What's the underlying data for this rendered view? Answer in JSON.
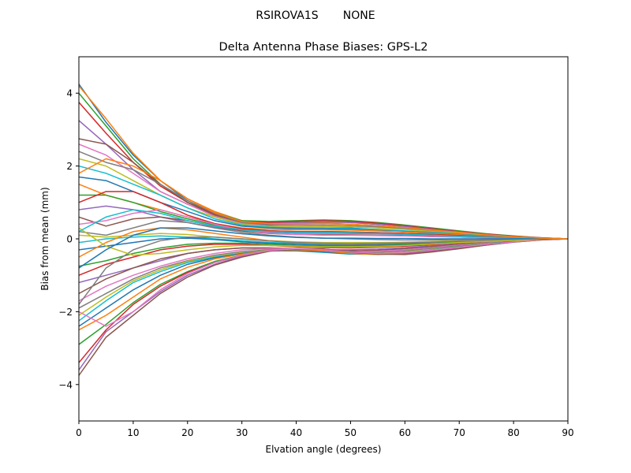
{
  "figure": {
    "suptitle": "RSIROVA1S       NONE"
  },
  "chart_data": {
    "type": "line",
    "title": "Delta Antenna Phase Biases: GPS-L2",
    "xlabel": "Elvation angle (degrees)",
    "ylabel": "Bias from mean (mm)",
    "xlim": [
      0,
      90
    ],
    "ylim": [
      -5,
      5
    ],
    "xticks": [
      0,
      10,
      20,
      30,
      40,
      50,
      60,
      70,
      80,
      90
    ],
    "yticks": [
      -4,
      -2,
      0,
      2,
      4
    ],
    "ytick_labels": [
      "−4",
      "−2",
      "0",
      "2",
      "4"
    ],
    "grid": false,
    "legend": "none",
    "x": [
      0,
      5,
      10,
      15,
      20,
      25,
      30,
      35,
      40,
      45,
      50,
      55,
      60,
      65,
      70,
      75,
      80,
      85,
      90
    ],
    "series_note_colors": [
      "#1f77b4",
      "#ff7f0e",
      "#2ca02c",
      "#d62728",
      "#9467bd",
      "#8c564b",
      "#e377c2",
      "#7f7f7f",
      "#bcbd22",
      "#17becf"
    ],
    "series": [
      {
        "values": [
          4.25,
          3.2,
          2.3,
          1.6,
          1.05,
          0.7,
          0.45,
          0.35,
          0.3,
          0.3,
          0.3,
          0.25,
          0.2,
          0.15,
          0.1,
          0.06,
          0.03,
          0.01,
          0
        ]
      },
      {
        "values": [
          4.2,
          3.3,
          2.35,
          1.6,
          1.1,
          0.75,
          0.5,
          0.45,
          0.45,
          0.45,
          0.45,
          0.4,
          0.35,
          0.27,
          0.2,
          0.13,
          0.07,
          0.03,
          0
        ]
      },
      {
        "values": [
          4.0,
          3.1,
          2.2,
          1.5,
          1.0,
          0.72,
          0.5,
          0.48,
          0.5,
          0.52,
          0.5,
          0.45,
          0.38,
          0.3,
          0.22,
          0.14,
          0.08,
          0.03,
          0
        ]
      },
      {
        "values": [
          3.75,
          2.9,
          2.1,
          1.45,
          1.0,
          0.68,
          0.48,
          0.45,
          0.48,
          0.5,
          0.48,
          0.43,
          0.36,
          0.28,
          0.2,
          0.13,
          0.07,
          0.03,
          0
        ]
      },
      {
        "values": [
          3.25,
          2.6,
          1.9,
          1.3,
          0.95,
          0.65,
          0.45,
          0.42,
          0.45,
          0.48,
          0.45,
          0.4,
          0.34,
          0.26,
          0.19,
          0.12,
          0.06,
          0.02,
          0
        ]
      },
      {
        "values": [
          2.75,
          2.6,
          2.1,
          1.5,
          1.0,
          0.65,
          0.45,
          0.4,
          0.42,
          0.43,
          0.4,
          0.36,
          0.3,
          0.24,
          0.17,
          0.11,
          0.06,
          0.02,
          0
        ]
      },
      {
        "values": [
          2.6,
          2.3,
          1.8,
          1.3,
          0.95,
          0.62,
          0.42,
          0.38,
          0.4,
          0.42,
          0.4,
          0.35,
          0.3,
          0.23,
          0.17,
          0.11,
          0.06,
          0.02,
          0
        ]
      },
      {
        "values": [
          2.4,
          2.1,
          1.9,
          1.5,
          1.05,
          0.7,
          0.45,
          0.38,
          0.37,
          0.38,
          0.36,
          0.33,
          0.28,
          0.22,
          0.16,
          0.1,
          0.05,
          0.02,
          0
        ]
      },
      {
        "values": [
          2.2,
          2.0,
          1.6,
          1.2,
          0.85,
          0.6,
          0.4,
          0.34,
          0.33,
          0.34,
          0.33,
          0.3,
          0.26,
          0.2,
          0.15,
          0.1,
          0.05,
          0.02,
          0
        ]
      },
      {
        "values": [
          2.0,
          1.8,
          1.5,
          1.2,
          0.85,
          0.55,
          0.38,
          0.32,
          0.3,
          0.3,
          0.28,
          0.26,
          0.22,
          0.18,
          0.13,
          0.08,
          0.04,
          0.01,
          0
        ]
      },
      {
        "values": [
          1.7,
          1.6,
          1.3,
          1.0,
          0.75,
          0.5,
          0.35,
          0.3,
          0.28,
          0.28,
          0.26,
          0.23,
          0.2,
          0.16,
          0.12,
          0.07,
          0.04,
          0.01,
          0
        ]
      },
      {
        "values": [
          1.5,
          1.2,
          1.0,
          0.8,
          0.6,
          0.42,
          0.3,
          0.26,
          0.25,
          0.25,
          0.24,
          0.22,
          0.19,
          0.15,
          0.11,
          0.07,
          0.04,
          0.01,
          0
        ]
      },
      {
        "values": [
          1.2,
          1.2,
          1.0,
          0.75,
          0.55,
          0.38,
          0.27,
          0.22,
          0.2,
          0.2,
          0.19,
          0.17,
          0.15,
          0.12,
          0.09,
          0.06,
          0.03,
          0.01,
          0
        ]
      },
      {
        "values": [
          1.0,
          1.3,
          1.3,
          1.0,
          0.65,
          0.42,
          0.28,
          0.22,
          0.2,
          0.2,
          0.19,
          0.17,
          0.15,
          0.12,
          0.09,
          0.06,
          0.03,
          0.01,
          0
        ]
      },
      {
        "values": [
          0.8,
          0.9,
          0.8,
          0.6,
          0.45,
          0.32,
          0.22,
          0.18,
          0.16,
          0.16,
          0.15,
          0.14,
          0.12,
          0.1,
          0.07,
          0.05,
          0.03,
          0.01,
          0
        ]
      },
      {
        "values": [
          0.6,
          0.35,
          0.55,
          0.6,
          0.5,
          0.35,
          0.22,
          0.15,
          0.12,
          0.12,
          0.11,
          0.1,
          0.09,
          0.07,
          0.05,
          0.03,
          0.02,
          0.01,
          0
        ]
      },
      {
        "values": [
          0.4,
          0.5,
          0.7,
          0.8,
          0.6,
          0.4,
          0.25,
          0.16,
          0.12,
          0.1,
          0.1,
          0.09,
          0.08,
          0.06,
          0.05,
          0.03,
          0.02,
          0.01,
          0
        ]
      },
      {
        "values": [
          0.2,
          0.1,
          0.3,
          0.5,
          0.45,
          0.3,
          0.18,
          0.1,
          0.05,
          0.02,
          0.0,
          -0.02,
          -0.03,
          -0.03,
          -0.02,
          -0.02,
          -0.01,
          0,
          0
        ]
      },
      {
        "values": [
          0.1,
          0.05,
          0.1,
          0.15,
          0.12,
          0.05,
          0.0,
          -0.05,
          -0.08,
          -0.1,
          -0.1,
          -0.1,
          -0.09,
          -0.07,
          -0.05,
          -0.03,
          -0.02,
          -0.01,
          0
        ]
      },
      {
        "values": [
          -0.1,
          0.0,
          0.05,
          0.08,
          0.05,
          0.0,
          -0.05,
          -0.1,
          -0.12,
          -0.14,
          -0.14,
          -0.13,
          -0.11,
          -0.09,
          -0.06,
          -0.04,
          -0.02,
          -0.01,
          0
        ]
      },
      {
        "values": [
          -0.3,
          -0.2,
          -0.1,
          0.0,
          0.02,
          -0.02,
          -0.08,
          -0.12,
          -0.15,
          -0.17,
          -0.17,
          -0.16,
          -0.14,
          -0.11,
          -0.08,
          -0.05,
          -0.03,
          -0.01,
          0
        ]
      },
      {
        "values": [
          -0.5,
          -0.1,
          0.2,
          0.3,
          0.25,
          0.15,
          0.05,
          -0.05,
          -0.1,
          -0.13,
          -0.14,
          -0.13,
          -0.11,
          -0.09,
          -0.06,
          -0.04,
          -0.02,
          -0.01,
          0
        ]
      },
      {
        "values": [
          -0.75,
          -0.6,
          -0.4,
          -0.25,
          -0.15,
          -0.12,
          -0.12,
          -0.15,
          -0.18,
          -0.2,
          -0.2,
          -0.19,
          -0.16,
          -0.13,
          -0.09,
          -0.06,
          -0.03,
          -0.01,
          0
        ]
      },
      {
        "values": [
          -1.0,
          -0.7,
          -0.5,
          -0.3,
          -0.2,
          -0.15,
          -0.15,
          -0.18,
          -0.22,
          -0.24,
          -0.25,
          -0.23,
          -0.2,
          -0.16,
          -0.11,
          -0.07,
          -0.04,
          -0.01,
          0
        ]
      },
      {
        "values": [
          -1.2,
          -1.0,
          -0.8,
          -0.6,
          -0.4,
          -0.3,
          -0.25,
          -0.25,
          -0.27,
          -0.3,
          -0.3,
          -0.28,
          -0.24,
          -0.19,
          -0.14,
          -0.09,
          -0.05,
          -0.02,
          0
        ]
      },
      {
        "values": [
          -1.5,
          -1.1,
          -0.8,
          -0.55,
          -0.4,
          -0.3,
          -0.25,
          -0.25,
          -0.28,
          -0.32,
          -0.33,
          -0.31,
          -0.27,
          -0.21,
          -0.15,
          -0.1,
          -0.05,
          -0.02,
          0
        ]
      },
      {
        "values": [
          -1.7,
          -1.3,
          -1.0,
          -0.75,
          -0.55,
          -0.4,
          -0.3,
          -0.27,
          -0.28,
          -0.32,
          -0.35,
          -0.34,
          -0.3,
          -0.24,
          -0.17,
          -0.11,
          -0.06,
          -0.02,
          0
        ]
      },
      {
        "values": [
          -1.9,
          -1.5,
          -1.1,
          -0.8,
          -0.6,
          -0.45,
          -0.35,
          -0.3,
          -0.3,
          -0.33,
          -0.37,
          -0.37,
          -0.33,
          -0.26,
          -0.19,
          -0.12,
          -0.06,
          -0.02,
          0
        ]
      },
      {
        "values": [
          -2.1,
          -1.6,
          -1.15,
          -0.85,
          -0.62,
          -0.48,
          -0.38,
          -0.32,
          -0.32,
          -0.36,
          -0.4,
          -0.4,
          -0.36,
          -0.29,
          -0.21,
          -0.13,
          -0.07,
          -0.02,
          0
        ]
      },
      {
        "values": [
          -2.25,
          -1.7,
          -1.2,
          -0.9,
          -0.65,
          -0.5,
          -0.4,
          -0.33,
          -0.33,
          -0.37,
          -0.42,
          -0.42,
          -0.38,
          -0.3,
          -0.22,
          -0.14,
          -0.07,
          -0.02,
          0
        ]
      },
      {
        "values": [
          -2.4,
          -1.9,
          -1.4,
          -1.0,
          -0.7,
          -0.52,
          -0.4,
          -0.33,
          -0.32,
          -0.36,
          -0.41,
          -0.42,
          -0.38,
          -0.31,
          -0.22,
          -0.14,
          -0.07,
          -0.02,
          0
        ]
      },
      {
        "values": [
          -2.5,
          -2.1,
          -1.6,
          -1.1,
          -0.78,
          -0.55,
          -0.42,
          -0.33,
          -0.3,
          -0.33,
          -0.4,
          -0.43,
          -0.4,
          -0.32,
          -0.23,
          -0.15,
          -0.08,
          -0.02,
          0
        ]
      },
      {
        "values": [
          -2.9,
          -2.35,
          -1.75,
          -1.25,
          -0.9,
          -0.62,
          -0.45,
          -0.33,
          -0.28,
          -0.3,
          -0.37,
          -0.42,
          -0.4,
          -0.33,
          -0.24,
          -0.15,
          -0.08,
          -0.02,
          0
        ]
      },
      {
        "values": [
          -3.4,
          -2.5,
          -1.8,
          -1.3,
          -0.92,
          -0.65,
          -0.46,
          -0.33,
          -0.28,
          -0.3,
          -0.36,
          -0.42,
          -0.41,
          -0.34,
          -0.25,
          -0.16,
          -0.08,
          -0.02,
          0
        ]
      },
      {
        "values": [
          -3.6,
          -2.55,
          -2.0,
          -1.45,
          -1.0,
          -0.7,
          -0.48,
          -0.33,
          -0.27,
          -0.28,
          -0.34,
          -0.41,
          -0.42,
          -0.35,
          -0.26,
          -0.17,
          -0.09,
          -0.03,
          0
        ]
      },
      {
        "values": [
          -3.75,
          -2.7,
          -2.1,
          -1.5,
          -1.05,
          -0.72,
          -0.5,
          -0.34,
          -0.27,
          -0.28,
          -0.34,
          -0.42,
          -0.43,
          -0.36,
          -0.27,
          -0.17,
          -0.09,
          -0.03,
          0
        ]
      },
      {
        "values": [
          -2.0,
          -2.4,
          -2.0,
          -1.4,
          -0.95,
          -0.65,
          -0.45,
          -0.32,
          -0.27,
          -0.3,
          -0.36,
          -0.4,
          -0.38,
          -0.31,
          -0.23,
          -0.15,
          -0.08,
          -0.02,
          0
        ]
      },
      {
        "values": [
          -1.8,
          -0.8,
          -0.3,
          -0.05,
          0.05,
          0.05,
          0.0,
          -0.06,
          -0.1,
          -0.12,
          -0.13,
          -0.12,
          -0.11,
          -0.09,
          -0.06,
          -0.04,
          -0.02,
          -0.01,
          0
        ]
      },
      {
        "values": [
          0.3,
          -0.2,
          -0.45,
          -0.4,
          -0.3,
          -0.22,
          -0.18,
          -0.18,
          -0.2,
          -0.22,
          -0.22,
          -0.21,
          -0.18,
          -0.14,
          -0.1,
          -0.07,
          -0.04,
          -0.01,
          0
        ]
      },
      {
        "values": [
          0.2,
          0.6,
          0.8,
          0.7,
          0.5,
          0.35,
          0.25,
          0.2,
          0.18,
          0.18,
          0.17,
          0.15,
          0.13,
          0.1,
          0.07,
          0.05,
          0.03,
          0.01,
          0
        ]
      },
      {
        "values": [
          -0.8,
          -0.3,
          0.1,
          0.3,
          0.3,
          0.22,
          0.14,
          0.08,
          0.04,
          0.02,
          0.02,
          0.01,
          0.01,
          0.0,
          0.0,
          0.0,
          0.0,
          0.0,
          0
        ]
      },
      {
        "values": [
          1.8,
          2.2,
          2.0,
          1.6,
          1.1,
          0.72,
          0.48,
          0.42,
          0.42,
          0.42,
          0.4,
          0.36,
          0.31,
          0.24,
          0.18,
          0.11,
          0.06,
          0.02,
          0
        ]
      }
    ]
  }
}
